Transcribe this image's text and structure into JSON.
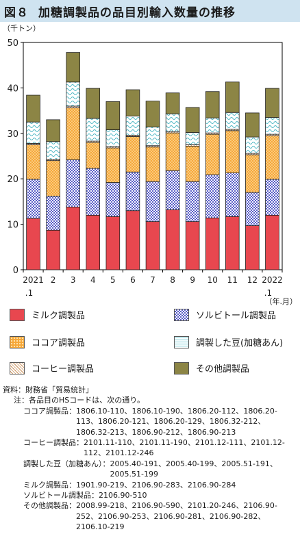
{
  "figure": {
    "number": "図８",
    "title": "加糖調製品の品目別輸入数量の推移"
  },
  "chart_data": {
    "type": "bar",
    "stacked": true,
    "y_unit_label": "（千トン）",
    "x_unit_label": "（年.月）",
    "ylim": [
      0,
      50
    ],
    "yticks": [
      0,
      10,
      20,
      30,
      40,
      50
    ],
    "categories": [
      "2021\n.1",
      "2",
      "3",
      "4",
      "5",
      "6",
      "7",
      "8",
      "9",
      "10",
      "11",
      "12",
      "2022\n.1"
    ],
    "series": [
      {
        "name": "ミルク調製品",
        "color": "#e8474f",
        "pattern": "solid",
        "values": [
          11.3,
          8.7,
          13.8,
          12.0,
          11.7,
          13.0,
          10.6,
          13.2,
          10.6,
          11.4,
          11.7,
          9.7,
          12.0
        ]
      },
      {
        "name": "ソルビトール調製品",
        "color": "#5a5fc8",
        "pattern": "checker",
        "values": [
          8.6,
          7.5,
          10.4,
          10.3,
          7.5,
          8.5,
          8.8,
          8.6,
          8.8,
          9.5,
          9.6,
          7.3,
          7.9
        ]
      },
      {
        "name": "ココア調製品",
        "color": "#f6a83a",
        "pattern": "dots",
        "values": [
          7.6,
          7.8,
          11.4,
          5.7,
          7.6,
          7.8,
          7.6,
          8.3,
          7.8,
          8.9,
          9.3,
          8.3,
          9.6
        ]
      },
      {
        "name": "コーヒー調製品",
        "color": "#c9905a",
        "pattern": "diagonal",
        "values": [
          0.3,
          0.3,
          0.4,
          0.3,
          0.3,
          0.3,
          0.3,
          0.3,
          0.3,
          0.3,
          0.3,
          0.3,
          0.3
        ]
      },
      {
        "name": "調製した豆(加糖あんん)",
        "color": "#7fd0d8",
        "pattern": "wave",
        "values": [
          4.7,
          3.9,
          5.3,
          5.0,
          3.7,
          4.2,
          4.1,
          3.9,
          2.7,
          3.3,
          3.7,
          3.6,
          3.7
        ]
      },
      {
        "name": "その他調製品",
        "color": "#8c8545",
        "pattern": "solid",
        "values": [
          5.9,
          4.8,
          6.5,
          6.6,
          6.2,
          5.8,
          5.7,
          4.6,
          5.5,
          5.8,
          6.7,
          5.3,
          6.4
        ]
      }
    ]
  },
  "legend": {
    "items": [
      {
        "label": "ミルク調製品",
        "color": "#e8474f",
        "pattern": "solid"
      },
      {
        "label": "ソルビトール調製品",
        "color": "#5a5fc8",
        "pattern": "checker"
      },
      {
        "label": "ココア調製品",
        "color": "#f6a83a",
        "pattern": "dots"
      },
      {
        "label": "調製した豆(加糖あん)",
        "color": "#7fd0d8",
        "pattern": "wave"
      },
      {
        "label": "コーヒー調製品",
        "color": "#c9905a",
        "pattern": "diagonal"
      },
      {
        "label": "その他調製品",
        "color": "#8c8545",
        "pattern": "solid"
      }
    ]
  },
  "notes": {
    "source": "資料：財務省「貿易統計」",
    "note": "注：各品目のHSコードは、次の通り。",
    "hs": [
      {
        "label": "ココア調製品：",
        "codes": "1806.10-110、1806.10-190、1806.20-112、1806.20-113、1806.20-121、1806.20-129、1806.32-212、1806.32-213、1806.90-212、1806.90-213"
      },
      {
        "label": "コーヒー調製品：",
        "codes": "2101.11-110、2101.11-190、2101.12-111、2101.12-112、2101.12-246"
      },
      {
        "label": "調製した豆（加糖あん）：",
        "codes": "2005.40-191、2005.40-199、2005.51-191、2005.51-199"
      },
      {
        "label": "ミルク調製品：",
        "codes": "1901.90-219、2106.90-283、2106.90-284"
      },
      {
        "label": "ソルビトール調製品：",
        "codes": "2106.90-510"
      },
      {
        "label": "その他調製品：",
        "codes": "2008.99-218、2106.90-590、2101.20-246、2106.90-252、2106.90-253、2106.90-281、2106.90-282、2106.10-219"
      }
    ]
  }
}
